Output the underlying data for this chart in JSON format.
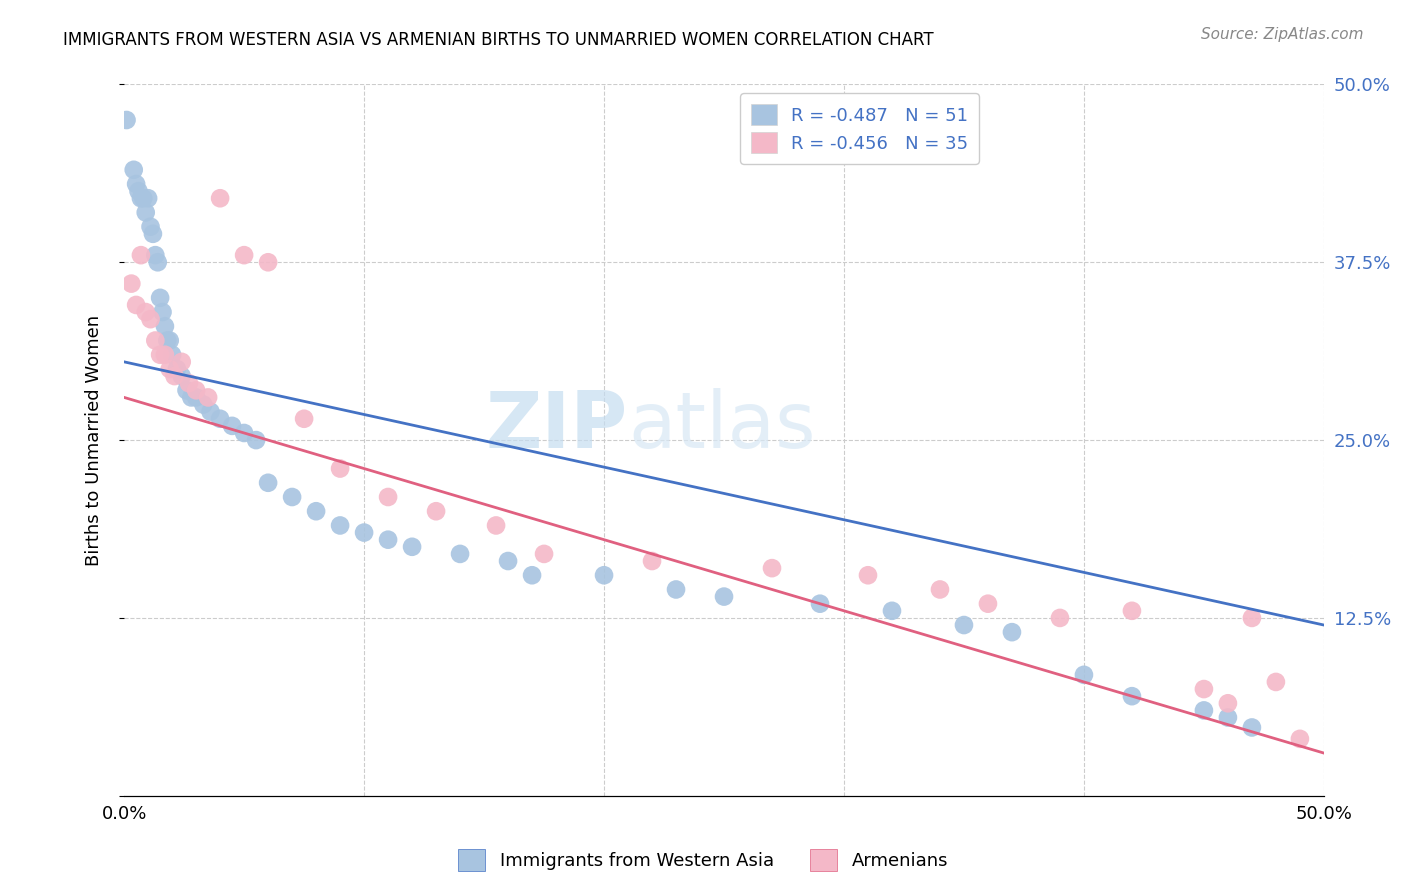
{
  "title": "IMMIGRANTS FROM WESTERN ASIA VS ARMENIAN BIRTHS TO UNMARRIED WOMEN CORRELATION CHART",
  "source": "Source: ZipAtlas.com",
  "ylabel": "Births to Unmarried Women",
  "xmin": 0.0,
  "xmax": 0.5,
  "ymin": 0.0,
  "ymax": 0.5,
  "grid_color": "#cccccc",
  "watermark_zip": "ZIP",
  "watermark_atlas": "atlas",
  "blue_color": "#a8c4e0",
  "pink_color": "#f4b8c8",
  "blue_line_color": "#4472c4",
  "pink_line_color": "#e06080",
  "legend_R_blue": "-0.487",
  "legend_N_blue": "51",
  "legend_R_pink": "-0.456",
  "legend_N_pink": "35",
  "legend_color": "#4472c4",
  "blue_scatter_x": [
    0.001,
    0.004,
    0.005,
    0.006,
    0.007,
    0.008,
    0.009,
    0.01,
    0.011,
    0.012,
    0.013,
    0.014,
    0.015,
    0.016,
    0.017,
    0.018,
    0.019,
    0.02,
    0.022,
    0.024,
    0.026,
    0.028,
    0.03,
    0.033,
    0.036,
    0.04,
    0.045,
    0.05,
    0.055,
    0.06,
    0.07,
    0.08,
    0.09,
    0.1,
    0.11,
    0.12,
    0.14,
    0.16,
    0.17,
    0.2,
    0.23,
    0.25,
    0.29,
    0.32,
    0.35,
    0.37,
    0.4,
    0.42,
    0.45,
    0.46,
    0.47
  ],
  "blue_scatter_y": [
    0.475,
    0.44,
    0.43,
    0.425,
    0.42,
    0.42,
    0.41,
    0.42,
    0.4,
    0.395,
    0.38,
    0.375,
    0.35,
    0.34,
    0.33,
    0.32,
    0.32,
    0.31,
    0.3,
    0.295,
    0.285,
    0.28,
    0.28,
    0.275,
    0.27,
    0.265,
    0.26,
    0.255,
    0.25,
    0.22,
    0.21,
    0.2,
    0.19,
    0.185,
    0.18,
    0.175,
    0.17,
    0.165,
    0.155,
    0.155,
    0.145,
    0.14,
    0.135,
    0.13,
    0.12,
    0.115,
    0.085,
    0.07,
    0.06,
    0.055,
    0.048
  ],
  "pink_scatter_x": [
    0.003,
    0.005,
    0.007,
    0.009,
    0.011,
    0.013,
    0.015,
    0.017,
    0.019,
    0.021,
    0.024,
    0.027,
    0.03,
    0.035,
    0.04,
    0.05,
    0.06,
    0.075,
    0.09,
    0.11,
    0.13,
    0.155,
    0.175,
    0.22,
    0.27,
    0.31,
    0.34,
    0.36,
    0.39,
    0.42,
    0.45,
    0.46,
    0.47,
    0.48,
    0.49
  ],
  "pink_scatter_y": [
    0.36,
    0.345,
    0.38,
    0.34,
    0.335,
    0.32,
    0.31,
    0.31,
    0.3,
    0.295,
    0.305,
    0.29,
    0.285,
    0.28,
    0.42,
    0.38,
    0.375,
    0.265,
    0.23,
    0.21,
    0.2,
    0.19,
    0.17,
    0.165,
    0.16,
    0.155,
    0.145,
    0.135,
    0.125,
    0.13,
    0.075,
    0.065,
    0.125,
    0.08,
    0.04
  ],
  "blue_line_x": [
    0.0,
    0.5
  ],
  "blue_line_y": [
    0.305,
    0.12
  ],
  "pink_line_x": [
    0.0,
    0.5
  ],
  "pink_line_y": [
    0.28,
    0.03
  ]
}
